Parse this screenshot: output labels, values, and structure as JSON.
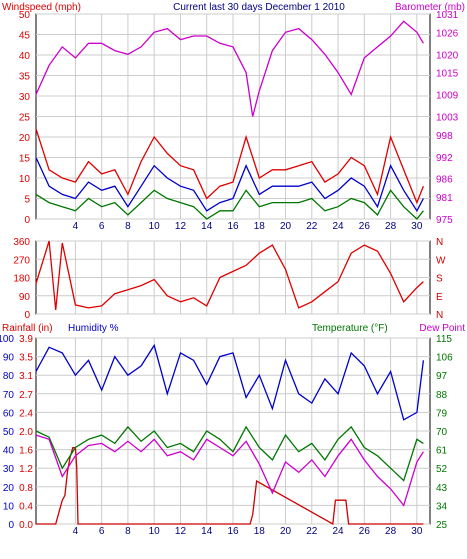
{
  "chart_data": [
    {
      "type": "line",
      "title": "Current last 30 days December 1 2010",
      "ylabel_left": "Windspeed (mph)",
      "ylabel_right": "Barometer (mb)",
      "x_ticks": [
        4,
        6,
        8,
        10,
        12,
        14,
        16,
        18,
        20,
        22,
        24,
        26,
        28,
        30
      ],
      "xlim": [
        1,
        31
      ],
      "y_left_ticks": [
        0,
        5,
        10,
        15,
        20,
        25,
        30,
        35,
        40,
        45,
        50
      ],
      "y_left_lim": [
        0,
        50
      ],
      "y_right_ticks": [
        975,
        981,
        986,
        992,
        998,
        1003,
        1009,
        1015,
        1020,
        1026,
        1031
      ],
      "y_right_lim": [
        975,
        1031
      ],
      "grid": true,
      "colors": {
        "gust": "#e00000",
        "avg": "#0000cc",
        "low": "#007700",
        "barometer": "#cc00cc"
      },
      "series": [
        {
          "name": "Barometer (mb)",
          "axis": "right",
          "color": "#cc00cc",
          "x": [
            1,
            2,
            3,
            4,
            5,
            6,
            7,
            8,
            9,
            10,
            11,
            12,
            13,
            14,
            15,
            16,
            17,
            17.5,
            18,
            19,
            20,
            21,
            22,
            23,
            24,
            25,
            26,
            27,
            28,
            29,
            30,
            30.5
          ],
          "values": [
            1009,
            1017,
            1022,
            1019,
            1023,
            1023,
            1021,
            1020,
            1022,
            1026,
            1027,
            1024,
            1025,
            1025,
            1023,
            1022,
            1015,
            1003,
            1010,
            1021,
            1026,
            1027,
            1024,
            1020,
            1015,
            1009,
            1019,
            1022,
            1025,
            1029,
            1026,
            1023
          ]
        },
        {
          "axis": "left",
          "color": "#e00000",
          "x": [
            1,
            2,
            3,
            4,
            5,
            6,
            7,
            8,
            9,
            10,
            11,
            12,
            13,
            14,
            15,
            16,
            17,
            18,
            19,
            20,
            21,
            22,
            23,
            24,
            25,
            26,
            27,
            28,
            29,
            30,
            30.5
          ],
          "values": [
            22,
            12,
            10,
            9,
            14,
            11,
            12,
            6,
            14,
            20,
            16,
            13,
            12,
            5,
            8,
            9,
            20,
            10,
            12,
            12,
            13,
            14,
            9,
            11,
            15,
            13,
            6,
            20,
            12,
            4,
            8
          ]
        },
        {
          "axis": "left",
          "color": "#0000cc",
          "x": [
            1,
            2,
            3,
            4,
            5,
            6,
            7,
            8,
            9,
            10,
            11,
            12,
            13,
            14,
            15,
            16,
            17,
            18,
            19,
            20,
            21,
            22,
            23,
            24,
            25,
            26,
            27,
            28,
            29,
            30,
            30.5
          ],
          "values": [
            15,
            8,
            6,
            5,
            9,
            7,
            8,
            3,
            8,
            13,
            10,
            8,
            7,
            2,
            4,
            5,
            13,
            6,
            8,
            8,
            8,
            9,
            5,
            7,
            10,
            8,
            3,
            13,
            7,
            2,
            5
          ]
        },
        {
          "axis": "left",
          "color": "#007700",
          "x": [
            1,
            2,
            3,
            4,
            5,
            6,
            7,
            8,
            9,
            10,
            11,
            12,
            13,
            14,
            15,
            16,
            17,
            18,
            19,
            20,
            21,
            22,
            23,
            24,
            25,
            26,
            27,
            28,
            29,
            30,
            30.5
          ],
          "values": [
            6,
            4,
            3,
            2,
            5,
            3,
            4,
            1,
            4,
            7,
            5,
            4,
            3,
            0,
            2,
            2,
            7,
            3,
            4,
            4,
            4,
            5,
            2,
            3,
            5,
            4,
            1,
            7,
            3,
            0,
            2
          ]
        }
      ]
    },
    {
      "type": "line",
      "y_left_ticks": [
        0,
        90,
        180,
        270,
        360
      ],
      "y_left_lim": [
        0,
        360
      ],
      "y_right_ticks": [
        "N",
        "E",
        "S",
        "W",
        "N"
      ],
      "xlim": [
        1,
        31
      ],
      "grid": true,
      "series": [
        {
          "color": "#e00000",
          "x": [
            1,
            2,
            2.5,
            3,
            4,
            5,
            6,
            7,
            8,
            9,
            10,
            11,
            12,
            13,
            14,
            15,
            16,
            17,
            18,
            19,
            20,
            21,
            22,
            23,
            24,
            25,
            26,
            27,
            28,
            29,
            30,
            30.5
          ],
          "values": [
            150,
            360,
            20,
            350,
            45,
            30,
            40,
            100,
            120,
            140,
            170,
            90,
            60,
            80,
            40,
            180,
            210,
            240,
            300,
            340,
            220,
            30,
            60,
            110,
            160,
            300,
            340,
            310,
            200,
            60,
            130,
            160
          ]
        }
      ]
    },
    {
      "type": "line",
      "ylabel_left_1": "Rainfall (in)",
      "ylabel_left_2": "Humidity %",
      "ylabel_right": "Temperature (°F)",
      "ylabel_right_2": "Dew Point",
      "rain_ticks": [
        "0.0",
        "0.4",
        "0.8",
        "1.2",
        "1.6",
        "2.0",
        "2.4",
        "2.7",
        "3.1",
        "3.5",
        "3.9"
      ],
      "rain_lim": [
        0,
        3.9
      ],
      "humidity_ticks": [
        0,
        10,
        20,
        30,
        40,
        50,
        60,
        70,
        80,
        90,
        100
      ],
      "humidity_lim": [
        0,
        100
      ],
      "temp_ticks": [
        25,
        34,
        43,
        52,
        61,
        70,
        79,
        88,
        97,
        106,
        115
      ],
      "temp_lim": [
        25,
        115
      ],
      "xlim": [
        1,
        31
      ],
      "grid": true,
      "series": [
        {
          "name": "Humidity %",
          "axis": "humidity",
          "color": "#0000cc",
          "x": [
            1,
            2,
            3,
            4,
            5,
            6,
            7,
            8,
            9,
            10,
            11,
            12,
            13,
            14,
            15,
            16,
            17,
            18,
            19,
            20,
            21,
            22,
            23,
            24,
            25,
            26,
            27,
            28,
            29,
            30,
            30.5
          ],
          "values": [
            82,
            95,
            92,
            80,
            88,
            72,
            90,
            80,
            85,
            96,
            70,
            92,
            88,
            75,
            90,
            92,
            68,
            80,
            62,
            88,
            70,
            65,
            78,
            70,
            92,
            85,
            70,
            82,
            56,
            60,
            88
          ]
        },
        {
          "name": "Temperature (°F)",
          "axis": "temp",
          "color": "#007700",
          "x": [
            1,
            2,
            3,
            4,
            5,
            6,
            7,
            8,
            9,
            10,
            11,
            12,
            13,
            14,
            15,
            16,
            17,
            18,
            19,
            20,
            21,
            22,
            23,
            24,
            25,
            26,
            27,
            28,
            29,
            30,
            30.5
          ],
          "values": [
            70,
            67,
            52,
            62,
            66,
            68,
            64,
            72,
            65,
            70,
            62,
            64,
            60,
            70,
            66,
            60,
            72,
            62,
            56,
            68,
            60,
            64,
            56,
            66,
            72,
            62,
            58,
            52,
            46,
            66,
            64
          ]
        },
        {
          "name": "Dew Point",
          "axis": "temp",
          "color": "#cc00cc",
          "x": [
            1,
            2,
            3,
            4,
            5,
            6,
            7,
            8,
            9,
            10,
            11,
            12,
            13,
            14,
            15,
            16,
            17,
            18,
            19,
            20,
            21,
            22,
            23,
            24,
            25,
            26,
            27,
            28,
            29,
            30,
            30.5
          ],
          "values": [
            68,
            66,
            48,
            58,
            63,
            64,
            60,
            65,
            60,
            66,
            58,
            60,
            56,
            66,
            62,
            58,
            65,
            54,
            40,
            55,
            50,
            56,
            48,
            58,
            66,
            56,
            48,
            42,
            34,
            55,
            60
          ]
        },
        {
          "name": "Rainfall (in)",
          "axis": "rain",
          "color": "#cc0000",
          "x": [
            1,
            2.5,
            3,
            3.2,
            3.4,
            3.6,
            3.8,
            4,
            4.1,
            4.2,
            17,
            17.3,
            17.5,
            17.8,
            23.6,
            23.8,
            24.6,
            24.8,
            30.5
          ],
          "values": [
            0,
            0,
            0.5,
            0.6,
            1.1,
            1.4,
            1.6,
            1.6,
            1.2,
            0,
            0,
            0,
            0.2,
            0.9,
            0,
            0.5,
            0.5,
            0,
            0
          ]
        }
      ]
    }
  ]
}
